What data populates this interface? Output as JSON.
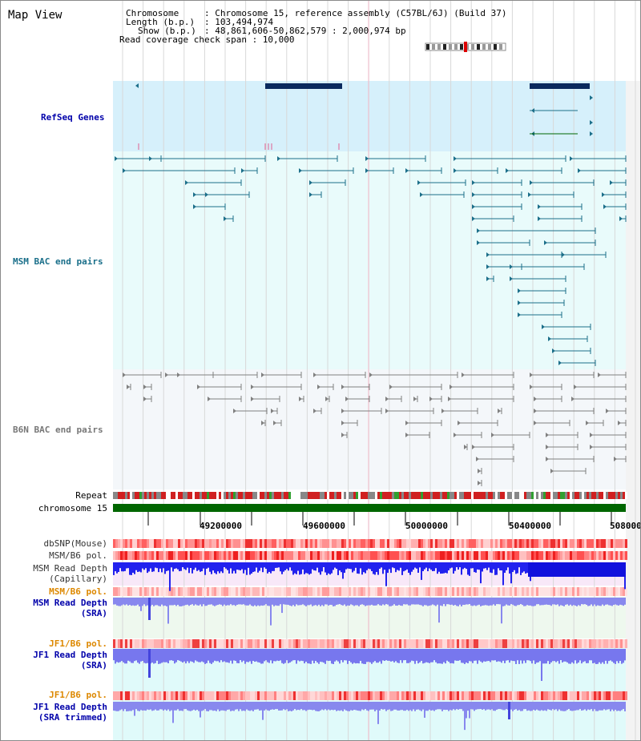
{
  "title": "Map View",
  "info": {
    "chromosome_key": "Chromosome",
    "chromosome_value": ": Chromosome 15, reference assembly (C57BL/6J) (Build 37)",
    "length_key": "Length (b.p.)",
    "length_value": ": 103,494,974",
    "show_key": "Show (b.p.)",
    "show_value": ": 48,861,606-50,862,579 : 2,000,974 bp",
    "coverage_label": "Read coverage check span : 10,000"
  },
  "tracks": {
    "refseq": "RefSeq Genes",
    "msm_bac": "MSM BAC end pairs",
    "b6n_bac": "B6N BAC end pairs",
    "repeat": "Repeat",
    "chromosome": "chromosome 15",
    "dbsnp": "dbSNP(Mouse)",
    "msm_b6_pol_1": "MSM/B6 pol.",
    "msm_read_depth_cap_1": "MSM Read Depth",
    "msm_read_depth_cap_2": "(Capillary)",
    "msm_b6_pol_2": "MSM/B6 pol.",
    "msm_read_depth_sra_1": "MSM Read Depth",
    "msm_read_depth_sra_2": "(SRA)",
    "jf1_b6_pol_1": "JF1/B6 pol.",
    "jf1_read_depth_sra_1": "JF1 Read Depth",
    "jf1_read_depth_sra_2": "(SRA)",
    "jf1_b6_pol_2": "JF1/B6 pol.",
    "jf1_read_depth_trim_1": "JF1 Read Depth",
    "jf1_read_depth_trim_2": "(SRA trimmed)"
  },
  "axis_labels": [
    "49200000",
    "49600000",
    "50000000",
    "50400000",
    "508000"
  ],
  "colors": {
    "refseq_bg": "#d6f0fb",
    "bac_bg": "#e9fbfb",
    "b6n_bg": "#f4f7fa",
    "gene_dark": "#0a2a5e",
    "msm_line": "#1c6f8a",
    "b6n_line": "#808080",
    "chromosome_bar": "#006600",
    "label_blue": "#0000aa",
    "label_teal": "#1a6f8a",
    "label_orange": "#dd8800",
    "depth_blue": "#2222ee",
    "depth_light": "#7777ee"
  }
}
